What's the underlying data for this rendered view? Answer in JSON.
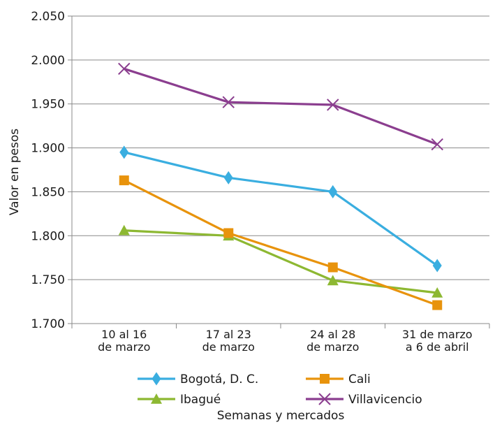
{
  "chart_data": {
    "type": "line",
    "xlabel": "Semanas y mercados",
    "ylabel": "Valor en pesos",
    "ylim": [
      1700,
      2050
    ],
    "y_ticks": [
      1700,
      1750,
      1800,
      1850,
      1900,
      1950,
      2000,
      2050
    ],
    "y_tick_labels": [
      "1.700",
      "1.750",
      "1.800",
      "1.850",
      "1.900",
      "1.950",
      "2.000",
      "2.050"
    ],
    "categories": [
      [
        "10 al 16",
        "de marzo"
      ],
      [
        "17 al 23",
        "de marzo"
      ],
      [
        "24 al 28",
        "de marzo"
      ],
      [
        "31 de marzo",
        "a 6 de abril"
      ]
    ],
    "grid": "horizontal",
    "legend_position": "bottom",
    "series": [
      {
        "name": "Bogotá, D. C.",
        "color": "#3aaee0",
        "marker": "diamond",
        "values": [
          1895,
          1866,
          1850,
          1766
        ]
      },
      {
        "name": "Cali",
        "color": "#e8930c",
        "marker": "square",
        "values": [
          1863,
          1803,
          1764,
          1721
        ]
      },
      {
        "name": "Ibagué",
        "color": "#8db832",
        "marker": "triangle",
        "values": [
          1806,
          1800,
          1749,
          1735
        ]
      },
      {
        "name": "Villavicencio",
        "color": "#8b3e8f",
        "marker": "x",
        "values": [
          1990,
          1952,
          1949,
          1904
        ]
      }
    ]
  }
}
